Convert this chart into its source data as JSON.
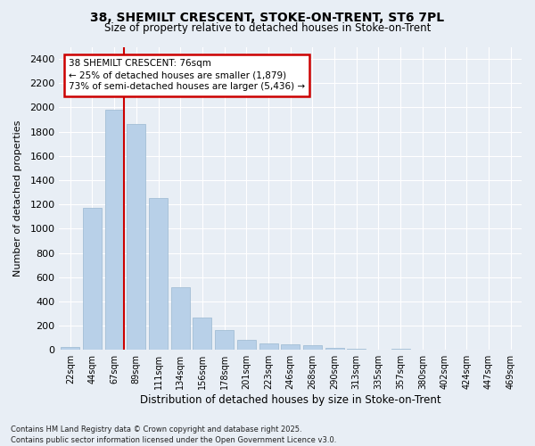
{
  "title_line1": "38, SHEMILT CRESCENT, STOKE-ON-TRENT, ST6 7PL",
  "title_line2": "Size of property relative to detached houses in Stoke-on-Trent",
  "xlabel": "Distribution of detached houses by size in Stoke-on-Trent",
  "ylabel": "Number of detached properties",
  "categories": [
    "22sqm",
    "44sqm",
    "67sqm",
    "89sqm",
    "111sqm",
    "134sqm",
    "156sqm",
    "178sqm",
    "201sqm",
    "223sqm",
    "246sqm",
    "268sqm",
    "290sqm",
    "313sqm",
    "335sqm",
    "357sqm",
    "380sqm",
    "402sqm",
    "424sqm",
    "447sqm",
    "469sqm"
  ],
  "values": [
    25,
    1175,
    1980,
    1860,
    1250,
    520,
    270,
    160,
    85,
    50,
    45,
    35,
    15,
    10,
    5,
    10,
    5,
    5,
    5,
    5,
    5
  ],
  "bar_color": "#b8d0e8",
  "bar_edge_color": "#9ab8d0",
  "highlight_bar_index": 2,
  "highlight_color": "#cc0000",
  "annotation_title": "38 SHEMILT CRESCENT: 76sqm",
  "annotation_line2": "← 25% of detached houses are smaller (1,879)",
  "annotation_line3": "73% of semi-detached houses are larger (5,436) →",
  "annotation_box_color": "#cc0000",
  "ylim": [
    0,
    2500
  ],
  "yticks": [
    0,
    200,
    400,
    600,
    800,
    1000,
    1200,
    1400,
    1600,
    1800,
    2000,
    2200,
    2400
  ],
  "bg_color": "#e8eef5",
  "grid_color": "#ffffff",
  "fig_bg_color": "#e8eef5",
  "footer_line1": "Contains HM Land Registry data © Crown copyright and database right 2025.",
  "footer_line2": "Contains public sector information licensed under the Open Government Licence v3.0."
}
